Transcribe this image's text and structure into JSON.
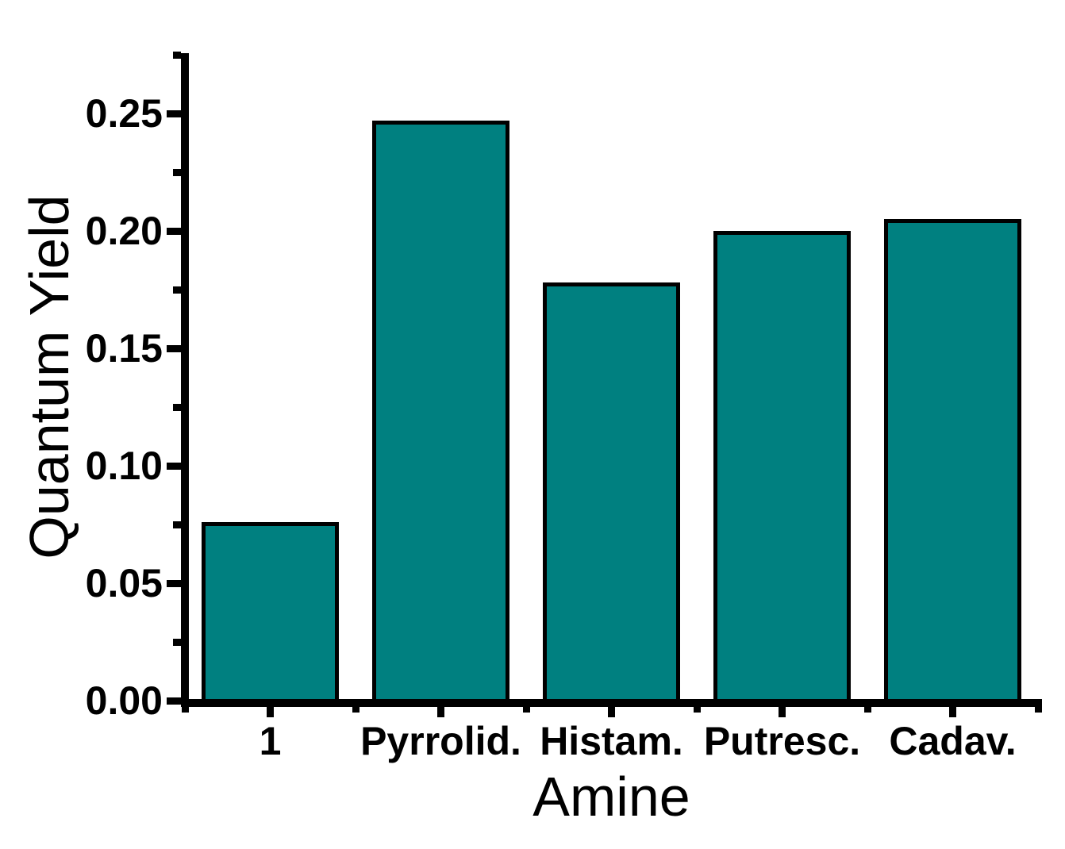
{
  "chart_data": {
    "type": "bar",
    "title": "",
    "categories": [
      "1",
      "Pyrrolid.",
      "Histam.",
      "Putresc.",
      "Cadav."
    ],
    "values": [
      0.076,
      0.247,
      0.178,
      0.2,
      0.205
    ],
    "xlabel": "Amine",
    "ylabel": "Quantum Yield",
    "ylim": [
      0,
      0.275
    ],
    "y_major_ticks": [
      0.0,
      0.05,
      0.1,
      0.15,
      0.2,
      0.25
    ],
    "y_tick_labels": [
      "0.00",
      "0.05",
      "0.10",
      "0.15",
      "0.20",
      "0.25"
    ],
    "y_minor_step": 0.025,
    "grid": false,
    "legend": null,
    "bar_color": "#008080",
    "bar_border_color": "#000000",
    "axis_color": "#000000",
    "background_color": "#ffffff"
  }
}
